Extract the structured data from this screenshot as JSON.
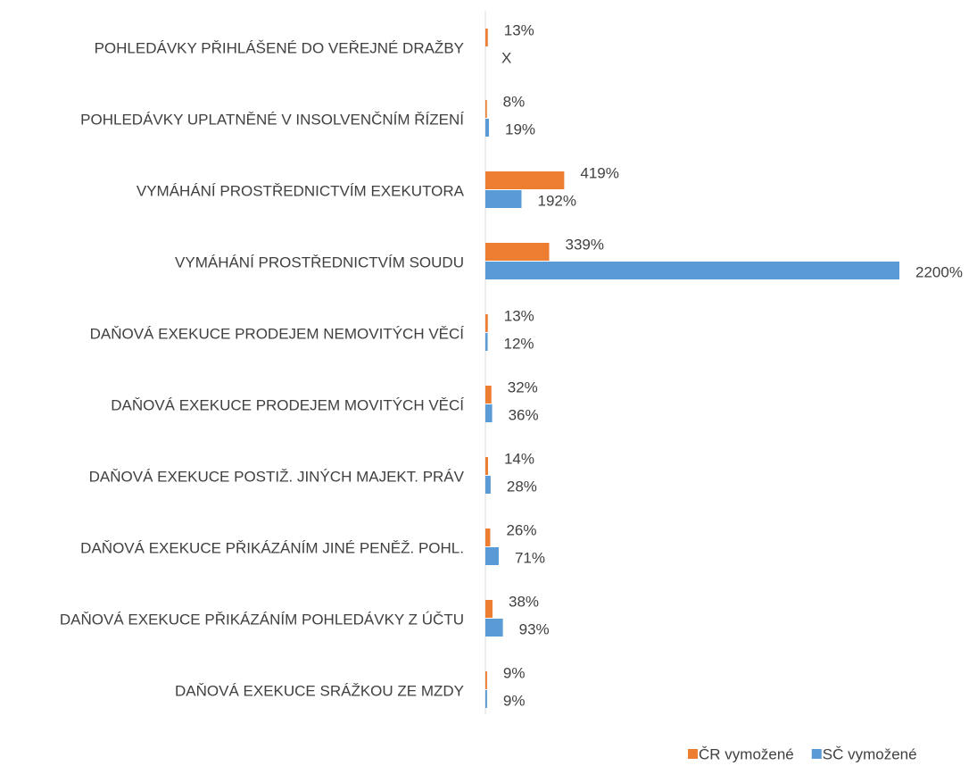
{
  "chart_data": {
    "type": "bar",
    "orientation": "horizontal",
    "categories": [
      "POHLEDÁVKY PŘIHLÁŠENÉ DO VEŘEJNÉ DRAŽBY",
      "POHLEDÁVKY UPLATNĚNÉ V INSOLVENČNÍM ŘÍZENÍ",
      "VYMÁHÁNÍ PROSTŘEDNICTVÍM EXEKUTORA",
      "VYMÁHÁNÍ PROSTŘEDNICTVÍM SOUDU",
      "DAŇOVÁ EXEKUCE PRODEJEM NEMOVITÝCH VĚCÍ",
      "DAŇOVÁ EXEKUCE PRODEJEM MOVITÝCH VĚCÍ",
      "DAŇOVÁ EXEKUCE POSTIŽ. JINÝCH MAJEKT. PRÁV",
      "DAŇOVÁ EXEKUCE PŘIKÁZÁNÍM JINÉ PENĚŽ. POHL.",
      "DAŇOVÁ EXEKUCE PŘIKÁZÁNÍM POHLEDÁVKY Z ÚČTU",
      "DAŇOVÁ EXEKUCE SRÁŽKOU ZE MZDY"
    ],
    "series": [
      {
        "name": "ČR vymožené",
        "color": "#ed7d31",
        "values": [
          13,
          8,
          419,
          339,
          13,
          32,
          14,
          26,
          38,
          9
        ],
        "value_labels": [
          "13%",
          "8%",
          "419%",
          "339%",
          "13%",
          "32%",
          "14%",
          "26%",
          "38%",
          "9%"
        ]
      },
      {
        "name": "SČ vymožené",
        "color": "#5b9bd5",
        "values": [
          null,
          19,
          192,
          2200,
          12,
          36,
          28,
          71,
          93,
          9
        ],
        "value_labels": [
          "X",
          "19%",
          "192%",
          "2200%",
          "12%",
          "36%",
          "28%",
          "71%",
          "93%",
          "9%"
        ]
      }
    ],
    "xlim": [
      0,
      2200
    ],
    "legend": "bottom"
  }
}
